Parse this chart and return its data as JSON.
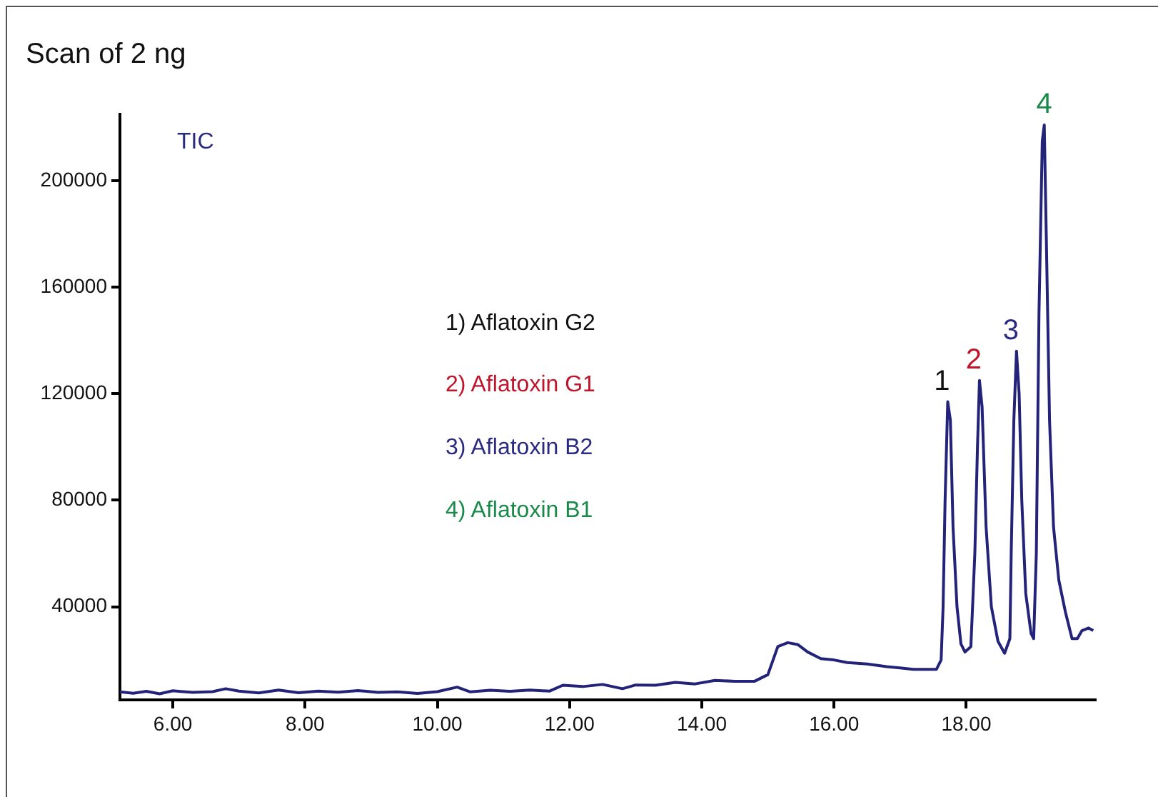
{
  "chart_data": {
    "type": "line",
    "title": "Scan of 2 ng",
    "xlim": [
      5.2,
      19.95
    ],
    "ylim": [
      5000,
      225000
    ],
    "xticks": [
      {
        "value": 6,
        "label": "6.00"
      },
      {
        "value": 8,
        "label": "8.00"
      },
      {
        "value": 10,
        "label": "10.00"
      },
      {
        "value": 12,
        "label": "12.00"
      },
      {
        "value": 14,
        "label": "14.00"
      },
      {
        "value": 16,
        "label": "16.00"
      },
      {
        "value": 18,
        "label": "18.00"
      }
    ],
    "yticks": [
      40000,
      80000,
      120000,
      160000,
      200000
    ],
    "grid": false,
    "legend": false,
    "marker": "none",
    "line_style": "solid",
    "annotations": [
      "TIC",
      "1)  Aflatoxin G2",
      "2)  Aflatoxin G1",
      "3)  Aflatoxin B2",
      "4)  Aflatoxin B1",
      {
        "text": "1",
        "x": 17.72,
        "y": 117000
      },
      {
        "text": "2",
        "x": 18.2,
        "y": 125000
      },
      {
        "text": "3",
        "x": 18.76,
        "y": 136000
      },
      {
        "text": "4",
        "x": 19.18,
        "y": 221000
      }
    ],
    "series": [
      {
        "color": "#23237a",
        "x": [
          5.2,
          5.4,
          5.6,
          5.8,
          6.0,
          6.3,
          6.6,
          6.8,
          7.0,
          7.3,
          7.6,
          7.9,
          8.2,
          8.5,
          8.8,
          9.1,
          9.4,
          9.7,
          10.0,
          10.3,
          10.5,
          10.8,
          11.1,
          11.4,
          11.7,
          11.9,
          12.2,
          12.5,
          12.8,
          13.0,
          13.3,
          13.6,
          13.9,
          14.2,
          14.5,
          14.8,
          15.0,
          15.15,
          15.3,
          15.45,
          15.6,
          15.8,
          16.0,
          16.2,
          16.5,
          16.8,
          17.0,
          17.2,
          17.4,
          17.55,
          17.62,
          17.65,
          17.68,
          17.72,
          17.76,
          17.8,
          17.86,
          17.92,
          17.98,
          18.07,
          18.13,
          18.17,
          18.2,
          18.24,
          18.3,
          18.38,
          18.48,
          18.58,
          18.66,
          18.68,
          18.72,
          18.76,
          18.8,
          18.84,
          18.9,
          18.98,
          19.02,
          19.06,
          19.1,
          19.15,
          19.18,
          19.21,
          19.26,
          19.32,
          19.4,
          19.5,
          19.6,
          19.68,
          19.75,
          19.85,
          19.92
        ],
        "values": [
          8000,
          7500,
          8200,
          7300,
          8400,
          7800,
          8100,
          9200,
          8300,
          7600,
          8700,
          7700,
          8300,
          7900,
          8500,
          7800,
          8000,
          7400,
          8100,
          9800,
          8000,
          8600,
          8200,
          8700,
          8300,
          10500,
          10000,
          10800,
          9200,
          10600,
          10500,
          11600,
          11000,
          12300,
          12000,
          12000,
          14500,
          25000,
          26500,
          25800,
          23000,
          20500,
          20000,
          19000,
          18500,
          17500,
          17000,
          16500,
          16500,
          16500,
          20000,
          40000,
          80000,
          117000,
          110000,
          70000,
          40000,
          26000,
          23000,
          25000,
          60000,
          100000,
          125000,
          115000,
          70000,
          40000,
          27000,
          22500,
          28000,
          60000,
          110000,
          136000,
          120000,
          80000,
          45000,
          30000,
          28000,
          60000,
          150000,
          215000,
          221000,
          180000,
          110000,
          70000,
          50000,
          38000,
          28000,
          28000,
          31000,
          32000,
          31000
        ]
      }
    ]
  }
}
